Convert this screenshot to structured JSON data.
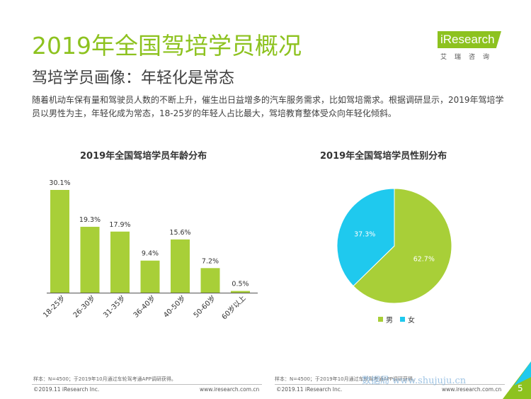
{
  "header": {
    "title": "2019年全国驾培学员概况",
    "subtitle": "驾培学员画像：年轻化是常态",
    "description": "随着机动车保有量和驾驶员人数的不断上升，催生出日益增多的汽车服务需求，比如驾培需求。根据调研显示，2019年驾培学员以男性为主，年轻化成为常态，18-25岁的年轻人占比最大，驾培教育整体受众向年轻化倾斜。"
  },
  "logo": {
    "text": "iResearch",
    "sub": "艾瑞咨询"
  },
  "colors": {
    "accent": "#8dc21f",
    "bar": "#a8cf38",
    "female": "#1fc9ee"
  },
  "chart_data": [
    {
      "type": "bar",
      "title": "2019年全国驾培学员年龄分布",
      "categories": [
        "18-25岁",
        "26-30岁",
        "31-35岁",
        "36-40岁",
        "40-50岁",
        "50-60岁",
        "60岁以上"
      ],
      "values": [
        30.1,
        19.3,
        17.9,
        9.4,
        15.6,
        7.2,
        0.5
      ],
      "value_labels": [
        "30.1%",
        "19.3%",
        "17.9%",
        "9.4%",
        "15.6%",
        "7.2%",
        "0.5%"
      ],
      "ylim": [
        0,
        30.1
      ]
    },
    {
      "type": "pie",
      "title": "2019年全国驾培学员性别分布",
      "categories": [
        "男",
        "女"
      ],
      "values": [
        62.7,
        37.3
      ],
      "value_labels": [
        "62.7%",
        "37.3%"
      ],
      "colors": [
        "#a8cf38",
        "#1fc9ee"
      ]
    }
  ],
  "footer": {
    "note_left": "样本：N=4500；于2019年10月通过车轮驾考通APP调研获得。",
    "note_right": "样本：N=4500；于2019年10月通过车轮驾考通APP调研获得。",
    "copyright_left": "©2019.11 iResearch Inc.",
    "url_left": "www.iresearch.com.cn",
    "copyright_right": "©2019.11 iResearch Inc.",
    "url_right": "www.iresearch.com.cn",
    "page_number": "5",
    "watermark": "数据局 www.shujuju.cn"
  }
}
